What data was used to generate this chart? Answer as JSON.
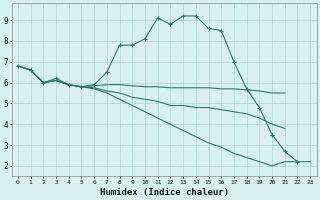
{
  "xlabel": "Humidex (Indice chaleur)",
  "bg_color": "#d8f0f0",
  "grid_color": "#aad4d4",
  "line_color": "#2a7a6a",
  "xlim": [
    -0.5,
    23.5
  ],
  "ylim": [
    1.5,
    9.8
  ],
  "xticks": [
    0,
    1,
    2,
    3,
    4,
    5,
    6,
    7,
    8,
    9,
    10,
    11,
    12,
    13,
    14,
    15,
    16,
    17,
    18,
    19,
    20,
    21,
    22,
    23
  ],
  "yticks": [
    2,
    3,
    4,
    5,
    6,
    7,
    8,
    9
  ],
  "line1_x": [
    0,
    1,
    2,
    3,
    4,
    5,
    6,
    7,
    8,
    9,
    10,
    11,
    12,
    13,
    14,
    15,
    16,
    17,
    18,
    19,
    20,
    21,
    22
  ],
  "line1_y": [
    6.8,
    6.6,
    6.0,
    6.2,
    5.9,
    5.8,
    5.9,
    6.5,
    7.8,
    7.8,
    8.1,
    9.1,
    8.8,
    9.2,
    9.2,
    8.6,
    8.5,
    7.0,
    5.7,
    4.8,
    3.5,
    2.7,
    2.2
  ],
  "line2_x": [
    0,
    1,
    2,
    3,
    4,
    5,
    6,
    7,
    8,
    9,
    10,
    11,
    12,
    13,
    14,
    15,
    16,
    17,
    18,
    19,
    20,
    21
  ],
  "line2_y": [
    6.8,
    6.6,
    6.0,
    6.1,
    5.9,
    5.8,
    5.85,
    5.9,
    5.9,
    5.85,
    5.8,
    5.8,
    5.75,
    5.75,
    5.75,
    5.75,
    5.7,
    5.7,
    5.65,
    5.6,
    5.5,
    5.5
  ],
  "line3_x": [
    0,
    1,
    2,
    3,
    4,
    5,
    6,
    7,
    8,
    9,
    10,
    11,
    12,
    13,
    14,
    15,
    16,
    17,
    18,
    19,
    20,
    21
  ],
  "line3_y": [
    6.8,
    6.6,
    6.0,
    6.1,
    5.9,
    5.8,
    5.75,
    5.6,
    5.5,
    5.3,
    5.2,
    5.1,
    4.9,
    4.9,
    4.8,
    4.8,
    4.7,
    4.6,
    4.5,
    4.3,
    4.0,
    3.8
  ],
  "line4_x": [
    0,
    1,
    2,
    3,
    4,
    5,
    6,
    7,
    8,
    9,
    10,
    11,
    12,
    13,
    14,
    15,
    16,
    17,
    18,
    19,
    20,
    21,
    22,
    23
  ],
  "line4_y": [
    6.8,
    6.6,
    6.0,
    6.1,
    5.9,
    5.8,
    5.7,
    5.5,
    5.2,
    4.9,
    4.6,
    4.3,
    4.0,
    3.7,
    3.4,
    3.1,
    2.9,
    2.6,
    2.4,
    2.2,
    2.0,
    2.2,
    2.2,
    2.2
  ]
}
